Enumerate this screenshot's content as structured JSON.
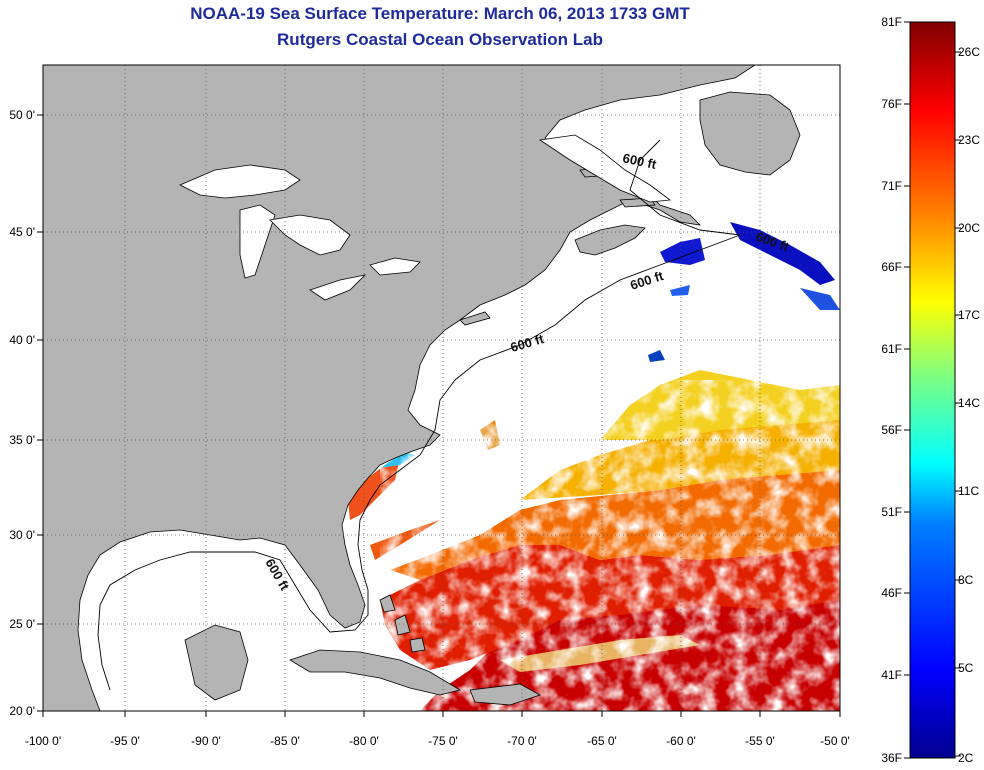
{
  "title": "NOAA-19 Sea Surface Temperature:  March 06, 2013 1733 GMT",
  "subtitle": "Rutgers Coastal Ocean Observation Lab",
  "isobath_labels": [
    "600 ft",
    "600 ft",
    "600 ft",
    "600 ft",
    "600 ft"
  ],
  "lon_ticks": [
    "-100 0'",
    "-95 0'",
    "-90 0'",
    "-85 0'",
    "-80 0'",
    "-75 0'",
    "-70 0'",
    "-65 0'",
    "-60 0'",
    "-55 0'",
    "-50 0'"
  ],
  "lat_ticks": [
    "20 0'",
    "25 0'",
    "30 0'",
    "35 0'",
    "40 0'",
    "45 0'",
    "50 0'"
  ],
  "colorbar": {
    "f_labels": [
      "81F",
      "76F",
      "71F",
      "66F",
      "61F",
      "56F",
      "51F",
      "46F",
      "41F",
      "36F"
    ],
    "c_labels": [
      "26C",
      "23C",
      "20C",
      "17C",
      "14C",
      "11C",
      "8C",
      "5C",
      "2C"
    ],
    "colors": [
      "#00008f",
      "#0000ff",
      "#0080ff",
      "#00ffff",
      "#80ff80",
      "#ffff00",
      "#ff8000",
      "#ff0000",
      "#800000"
    ]
  },
  "colors": {
    "land": "#b4b4b4",
    "title": "#1f2a9c",
    "no_data": "#ffffff"
  }
}
